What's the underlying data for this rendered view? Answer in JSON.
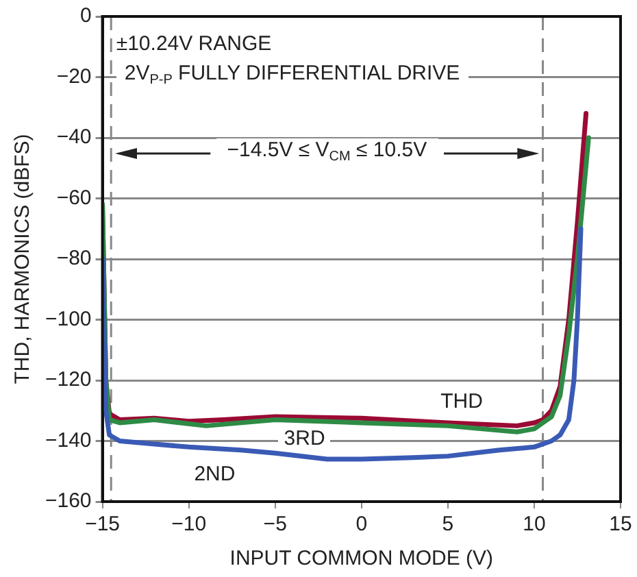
{
  "chart_data": {
    "type": "line",
    "xlabel": "INPUT COMMON MODE (V)",
    "ylabel": "THD, HARMONICS (dBFS)",
    "xlim": [
      -15,
      15
    ],
    "xticks": [
      {
        "value": -15,
        "label": "−15"
      },
      {
        "value": -10,
        "label": "−10"
      },
      {
        "value": -5,
        "label": "−5"
      },
      0,
      5,
      10,
      15
    ],
    "ylim": [
      -160,
      0
    ],
    "yticks": [
      {
        "value": -160,
        "label": "−160"
      },
      {
        "value": -140,
        "label": "−140"
      },
      {
        "value": -120,
        "label": "−120"
      },
      {
        "value": -100,
        "label": "−100"
      },
      {
        "value": -80,
        "label": "−80"
      },
      {
        "value": -60,
        "label": "−60"
      },
      {
        "value": -40,
        "label": "−40"
      },
      {
        "value": -20,
        "label": "−20"
      },
      0
    ],
    "grid": "y",
    "legend": false,
    "marker": "none",
    "line_style": "solid",
    "ref_lines": [
      {
        "axis": "x",
        "value": -14.5,
        "line_style": "dashed",
        "color": "#888888"
      },
      {
        "axis": "x",
        "value": 10.5,
        "line_style": "dashed",
        "color": "#888888"
      }
    ],
    "annotations": [
      "±10.24V RANGE",
      "2V$_{P-P}$ FULLY DIFFERENTIAL DRIVE",
      "−14.5V ≤ V$_{CM}$ ≤ 10.5V"
    ],
    "series": [
      {
        "name": "2ND",
        "color": "#3a5bb5",
        "x": [
          -15,
          -14.8,
          -14.6,
          -14,
          -12,
          -10,
          -7,
          -5,
          -2,
          0,
          3,
          5,
          8,
          10,
          11,
          11.5,
          12,
          12.3,
          12.5,
          12.7
        ],
        "values": [
          -80,
          -130,
          -138,
          -140,
          -141,
          -142,
          -143,
          -144,
          -146,
          -146,
          -145.5,
          -145,
          -143,
          -142,
          -140,
          -138,
          -133,
          -120,
          -100,
          -70
        ]
      },
      {
        "name": "3RD",
        "color": "#2e8b45",
        "x": [
          -15,
          -14.8,
          -14.6,
          -14,
          -12,
          -9,
          -5,
          0,
          5,
          9,
          10,
          10.5,
          11,
          11.5,
          12,
          12.5,
          13.15
        ],
        "values": [
          -62,
          -120,
          -133,
          -134,
          -133,
          -135,
          -133,
          -134,
          -135,
          -137,
          -136,
          -134,
          -132,
          -125,
          -105,
          -80,
          -40
        ]
      },
      {
        "name": "THD",
        "color": "#9b0a34",
        "x": [
          -15,
          -14.8,
          -14.6,
          -14,
          -12,
          -10,
          -8,
          -5,
          0,
          5,
          9,
          10,
          10.5,
          11,
          11.5,
          12,
          12.5,
          13
        ],
        "values": [
          -62,
          -120,
          -131,
          -133,
          -132.5,
          -133.5,
          -133,
          -132,
          -132.5,
          -134,
          -135,
          -134,
          -133,
          -130,
          -122,
          -100,
          -68,
          -32
        ]
      }
    ]
  }
}
